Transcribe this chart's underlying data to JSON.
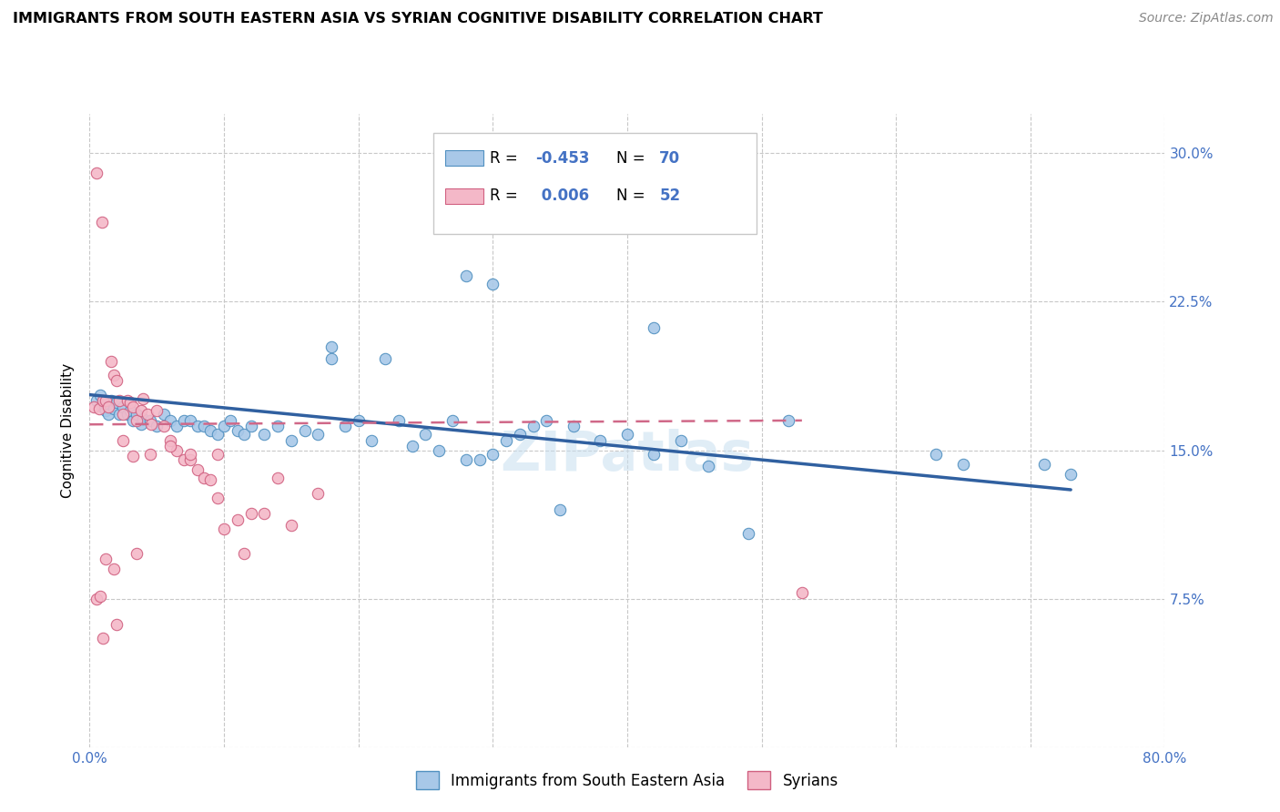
{
  "title": "IMMIGRANTS FROM SOUTH EASTERN ASIA VS SYRIAN COGNITIVE DISABILITY CORRELATION CHART",
  "source": "Source: ZipAtlas.com",
  "ylabel": "Cognitive Disability",
  "x_min": 0.0,
  "x_max": 0.8,
  "y_min": 0.0,
  "y_max": 0.32,
  "x_ticks": [
    0.0,
    0.1,
    0.2,
    0.3,
    0.4,
    0.5,
    0.6,
    0.7,
    0.8
  ],
  "x_tick_labels": [
    "0.0%",
    "",
    "",
    "",
    "",
    "",
    "",
    "",
    "80.0%"
  ],
  "y_ticks": [
    0.0,
    0.075,
    0.15,
    0.225,
    0.3
  ],
  "y_tick_labels": [
    "",
    "7.5%",
    "15.0%",
    "22.5%",
    "30.0%"
  ],
  "color_blue": "#a8c8e8",
  "color_pink": "#f4b8c8",
  "color_blue_edge": "#5090c0",
  "color_pink_edge": "#d06080",
  "color_blue_line": "#3060a0",
  "color_pink_line": "#d06888",
  "color_blue_text": "#4472c4",
  "color_axis_text": "#4472c4",
  "grid_color": "#c8c8c8",
  "background_color": "#ffffff",
  "blue_scatter_x": [
    0.005,
    0.008,
    0.01,
    0.012,
    0.014,
    0.016,
    0.018,
    0.02,
    0.022,
    0.025,
    0.028,
    0.03,
    0.032,
    0.035,
    0.038,
    0.04,
    0.045,
    0.05,
    0.055,
    0.06,
    0.065,
    0.07,
    0.075,
    0.08,
    0.085,
    0.09,
    0.095,
    0.1,
    0.105,
    0.11,
    0.115,
    0.12,
    0.13,
    0.14,
    0.15,
    0.16,
    0.17,
    0.18,
    0.19,
    0.2,
    0.21,
    0.22,
    0.23,
    0.24,
    0.25,
    0.26,
    0.27,
    0.28,
    0.29,
    0.3,
    0.31,
    0.32,
    0.33,
    0.34,
    0.35,
    0.36,
    0.38,
    0.4,
    0.42,
    0.44,
    0.46,
    0.49,
    0.52,
    0.28,
    0.3,
    0.18,
    0.42,
    0.63,
    0.65,
    0.71,
    0.73
  ],
  "blue_scatter_y": [
    0.175,
    0.178,
    0.172,
    0.17,
    0.168,
    0.175,
    0.171,
    0.174,
    0.168,
    0.172,
    0.168,
    0.17,
    0.165,
    0.168,
    0.163,
    0.166,
    0.165,
    0.162,
    0.168,
    0.165,
    0.162,
    0.165,
    0.165,
    0.162,
    0.162,
    0.16,
    0.158,
    0.162,
    0.165,
    0.16,
    0.158,
    0.162,
    0.158,
    0.162,
    0.155,
    0.16,
    0.158,
    0.196,
    0.162,
    0.165,
    0.155,
    0.196,
    0.165,
    0.152,
    0.158,
    0.15,
    0.165,
    0.145,
    0.145,
    0.148,
    0.155,
    0.158,
    0.162,
    0.165,
    0.12,
    0.162,
    0.155,
    0.158,
    0.148,
    0.155,
    0.142,
    0.108,
    0.165,
    0.238,
    0.234,
    0.202,
    0.212,
    0.148,
    0.143,
    0.143,
    0.138
  ],
  "pink_scatter_x": [
    0.003,
    0.005,
    0.007,
    0.009,
    0.01,
    0.012,
    0.014,
    0.016,
    0.018,
    0.02,
    0.022,
    0.025,
    0.028,
    0.03,
    0.032,
    0.035,
    0.038,
    0.04,
    0.043,
    0.046,
    0.05,
    0.055,
    0.06,
    0.065,
    0.07,
    0.075,
    0.08,
    0.085,
    0.09,
    0.095,
    0.1,
    0.11,
    0.12,
    0.13,
    0.14,
    0.15,
    0.17,
    0.005,
    0.008,
    0.012,
    0.018,
    0.025,
    0.032,
    0.045,
    0.06,
    0.075,
    0.095,
    0.115,
    0.53,
    0.01,
    0.02,
    0.035
  ],
  "pink_scatter_y": [
    0.172,
    0.29,
    0.171,
    0.265,
    0.175,
    0.175,
    0.172,
    0.195,
    0.188,
    0.185,
    0.175,
    0.168,
    0.175,
    0.174,
    0.172,
    0.165,
    0.17,
    0.176,
    0.168,
    0.163,
    0.17,
    0.162,
    0.155,
    0.15,
    0.145,
    0.145,
    0.14,
    0.136,
    0.135,
    0.126,
    0.11,
    0.115,
    0.118,
    0.118,
    0.136,
    0.112,
    0.128,
    0.075,
    0.076,
    0.095,
    0.09,
    0.155,
    0.147,
    0.148,
    0.152,
    0.148,
    0.148,
    0.098,
    0.078,
    0.055,
    0.062,
    0.098
  ],
  "blue_line_x": [
    0.0,
    0.73
  ],
  "blue_line_y": [
    0.178,
    0.13
  ],
  "pink_line_x": [
    0.0,
    0.53
  ],
  "pink_line_y": [
    0.163,
    0.165
  ],
  "watermark": "ZIPatlas",
  "legend_label_1": "Immigrants from South Eastern Asia",
  "legend_label_2": "Syrians"
}
